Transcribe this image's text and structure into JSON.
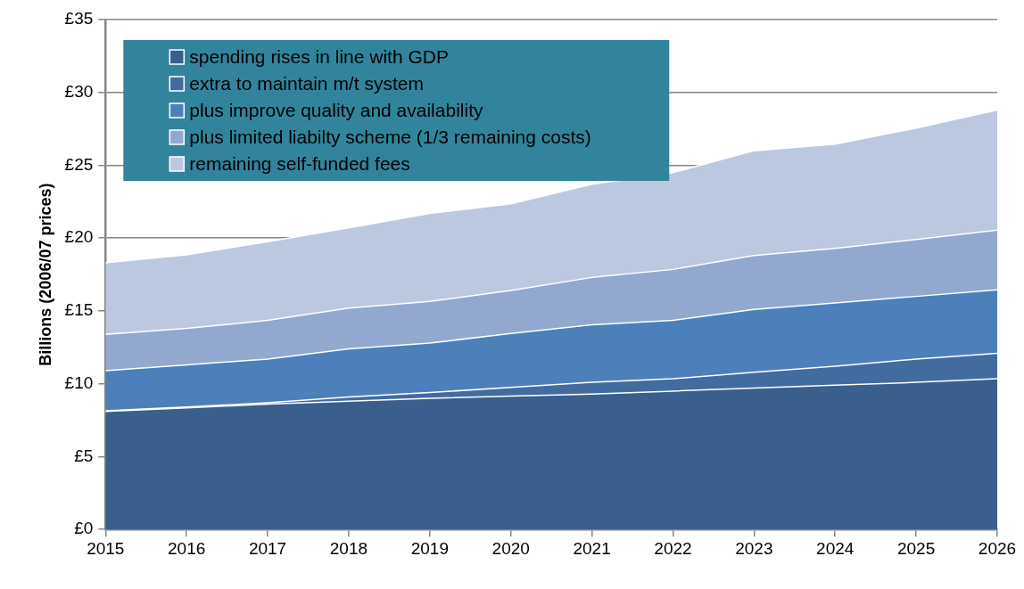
{
  "chart_data": {
    "type": "area",
    "stacked": true,
    "ylabel": "Billions (2006/07 prices)",
    "x": [
      2015,
      2016,
      2017,
      2018,
      2019,
      2020,
      2021,
      2022,
      2023,
      2024,
      2025,
      2026
    ],
    "xlim": [
      2015,
      2026
    ],
    "xticks": [
      2015,
      2016,
      2017,
      2018,
      2019,
      2020,
      2021,
      2022,
      2023,
      2024,
      2025,
      2026
    ],
    "ylim": [
      0,
      35
    ],
    "yticks": [
      {
        "value": 0,
        "label": "£0"
      },
      {
        "value": 5,
        "label": "£5"
      },
      {
        "value": 10,
        "label": "£10"
      },
      {
        "value": 15,
        "label": "£15"
      },
      {
        "value": 20,
        "label": "£20"
      },
      {
        "value": 25,
        "label": "£25"
      },
      {
        "value": 30,
        "label": "£30"
      },
      {
        "value": 35,
        "label": "£35"
      }
    ],
    "grid": "y",
    "legend": "top left",
    "series": [
      {
        "name": "spending rises in line with GDP",
        "color": "#3a5f8d",
        "values": [
          8.1,
          8.35,
          8.6,
          8.8,
          9.0,
          9.15,
          9.3,
          9.5,
          9.7,
          9.9,
          10.1,
          10.35
        ]
      },
      {
        "name": "extra to maintain m/t system",
        "color": "#426ca0",
        "values": [
          0.05,
          0.05,
          0.1,
          0.3,
          0.4,
          0.6,
          0.8,
          0.85,
          1.1,
          1.3,
          1.6,
          1.75
        ]
      },
      {
        "name": "plus improve quality and availability",
        "color": "#4d80ba",
        "values": [
          2.75,
          2.9,
          3.0,
          3.3,
          3.4,
          3.7,
          3.95,
          4.0,
          4.3,
          4.35,
          4.3,
          4.35
        ]
      },
      {
        "name": "plus limited liabilty scheme (1/3 remaining costs)",
        "color": "#93a8cf",
        "values": [
          2.5,
          2.5,
          2.65,
          2.8,
          2.85,
          2.95,
          3.25,
          3.5,
          3.7,
          3.75,
          3.9,
          4.1
        ]
      },
      {
        "name": "remaining self-funded fees",
        "color": "#bcc8e0",
        "values": [
          4.9,
          5.05,
          5.4,
          5.5,
          6.05,
          5.95,
          6.4,
          6.65,
          7.2,
          7.15,
          7.65,
          8.25
        ]
      }
    ]
  }
}
